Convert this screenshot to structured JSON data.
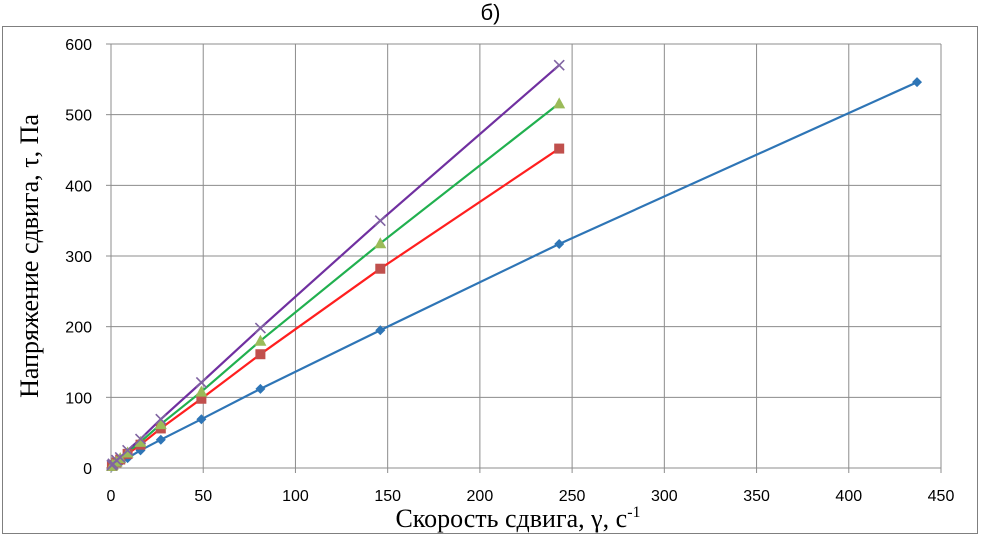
{
  "chart_data": {
    "type": "scatter",
    "title": "б)",
    "xlabel": "Скорость сдвига, γ, с",
    "xlabel_sup": "-1",
    "ylabel": "Напряжение сдвига,  τ, Па",
    "xlim": [
      0,
      450
    ],
    "ylim": [
      0,
      600
    ],
    "x_ticks": [
      0,
      50,
      100,
      150,
      200,
      250,
      300,
      350,
      400,
      450
    ],
    "y_ticks": [
      0,
      100,
      200,
      300,
      400,
      500,
      600
    ],
    "grid": true,
    "legend": "none",
    "series": [
      {
        "color": "#2e75b6",
        "marker": "diamond",
        "x": [
          0.5,
          1,
          3,
          5,
          9,
          16,
          27,
          49,
          81,
          146,
          243,
          437
        ],
        "y": [
          2,
          3,
          6,
          8,
          14,
          25,
          40,
          69,
          112,
          195,
          317,
          546
        ]
      },
      {
        "color": "#ff1f1f",
        "marker_color": "#c0504d",
        "marker": "square",
        "x": [
          0.5,
          1,
          3,
          5,
          9,
          16,
          27,
          49,
          81,
          146,
          243
        ],
        "y": [
          3,
          4,
          8,
          12,
          20,
          33,
          56,
          98,
          161,
          282,
          452
        ]
      },
      {
        "color": "#21b04f",
        "marker_color": "#9bbb59",
        "marker": "triangle",
        "x": [
          0.5,
          1,
          3,
          5,
          9,
          16,
          27,
          49,
          81,
          146,
          243
        ],
        "y": [
          3,
          5,
          9,
          14,
          22,
          37,
          62,
          108,
          180,
          318,
          516
        ]
      },
      {
        "color": "#7030a0",
        "marker_color": "#8064a2",
        "marker": "x",
        "x": [
          0.5,
          1,
          3,
          5,
          9,
          16,
          27,
          49,
          81,
          146,
          243
        ],
        "y": [
          4,
          6,
          11,
          15,
          25,
          41,
          69,
          121,
          198,
          350,
          570
        ]
      }
    ]
  }
}
